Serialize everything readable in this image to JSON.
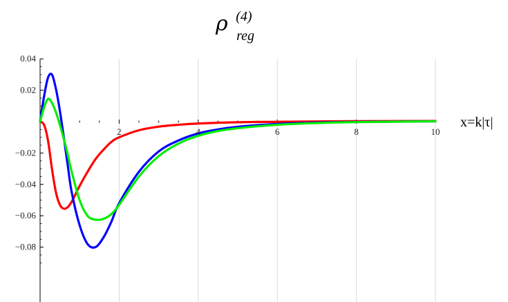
{
  "chart_data": {
    "type": "line",
    "title": {
      "symbol": "ρ",
      "superscript": "(4)",
      "subscript": "reg"
    },
    "xlabel": "x=k|τ|",
    "ylabel": "",
    "xlim": [
      0,
      10
    ],
    "ylim": [
      -0.09,
      0.04
    ],
    "x_ticks": [
      2,
      4,
      6,
      8,
      10
    ],
    "x_tick_labels": [
      "2",
      "4",
      "6",
      "8",
      "10"
    ],
    "y_ticks": [
      -0.08,
      -0.06,
      -0.04,
      -0.02,
      0.02,
      0.04
    ],
    "y_tick_labels": [
      "−0.08",
      "−0.06",
      "−0.04",
      "−0.02",
      "0.02",
      "0.04"
    ],
    "grid": {
      "vertical": true,
      "horizontal": false
    },
    "series": [
      {
        "color": "#ff0000",
        "x": [
          0,
          0.1,
          0.2,
          0.3,
          0.4,
          0.5,
          0.6,
          0.7,
          0.8,
          0.9,
          1.0,
          1.2,
          1.4,
          1.6,
          1.8,
          2.0,
          2.5,
          3.0,
          3.5,
          4.0,
          5.0,
          6.0,
          8.0,
          10.0
        ],
        "y": [
          0.0,
          -0.002,
          -0.012,
          -0.03,
          -0.045,
          -0.053,
          -0.0555,
          -0.0545,
          -0.051,
          -0.046,
          -0.041,
          -0.032,
          -0.024,
          -0.018,
          -0.013,
          -0.01,
          -0.0055,
          -0.0032,
          -0.002,
          -0.0012,
          -0.0004,
          -0.0001,
          0.0003,
          0.0004
        ]
      },
      {
        "color": "#0000ff",
        "x": [
          0,
          0.1,
          0.2,
          0.3,
          0.4,
          0.5,
          0.6,
          0.7,
          0.8,
          1.0,
          1.2,
          1.4,
          1.6,
          1.8,
          2.0,
          2.5,
          3.0,
          3.5,
          4.0,
          4.5,
          5.0,
          6.0,
          7.0,
          8.0,
          10.0
        ],
        "y": [
          0.0,
          0.016,
          0.028,
          0.03,
          0.021,
          0.007,
          -0.01,
          -0.028,
          -0.045,
          -0.066,
          -0.078,
          -0.08,
          -0.074,
          -0.064,
          -0.052,
          -0.032,
          -0.019,
          -0.012,
          -0.0075,
          -0.005,
          -0.0033,
          -0.0015,
          -0.0006,
          -0.0002,
          0.0002
        ]
      },
      {
        "color": "#00ee00",
        "x": [
          0,
          0.1,
          0.2,
          0.3,
          0.4,
          0.5,
          0.6,
          0.7,
          0.8,
          1.0,
          1.2,
          1.4,
          1.6,
          1.8,
          2.0,
          2.5,
          3.0,
          3.5,
          4.0,
          4.5,
          5.0,
          6.0,
          7.0,
          8.0,
          10.0
        ],
        "y": [
          0.0,
          0.009,
          0.0145,
          0.012,
          0.006,
          -0.002,
          -0.011,
          -0.021,
          -0.032,
          -0.05,
          -0.06,
          -0.0625,
          -0.062,
          -0.059,
          -0.053,
          -0.035,
          -0.022,
          -0.014,
          -0.009,
          -0.006,
          -0.0042,
          -0.002,
          -0.0009,
          -0.0003,
          0.0002
        ]
      }
    ]
  }
}
